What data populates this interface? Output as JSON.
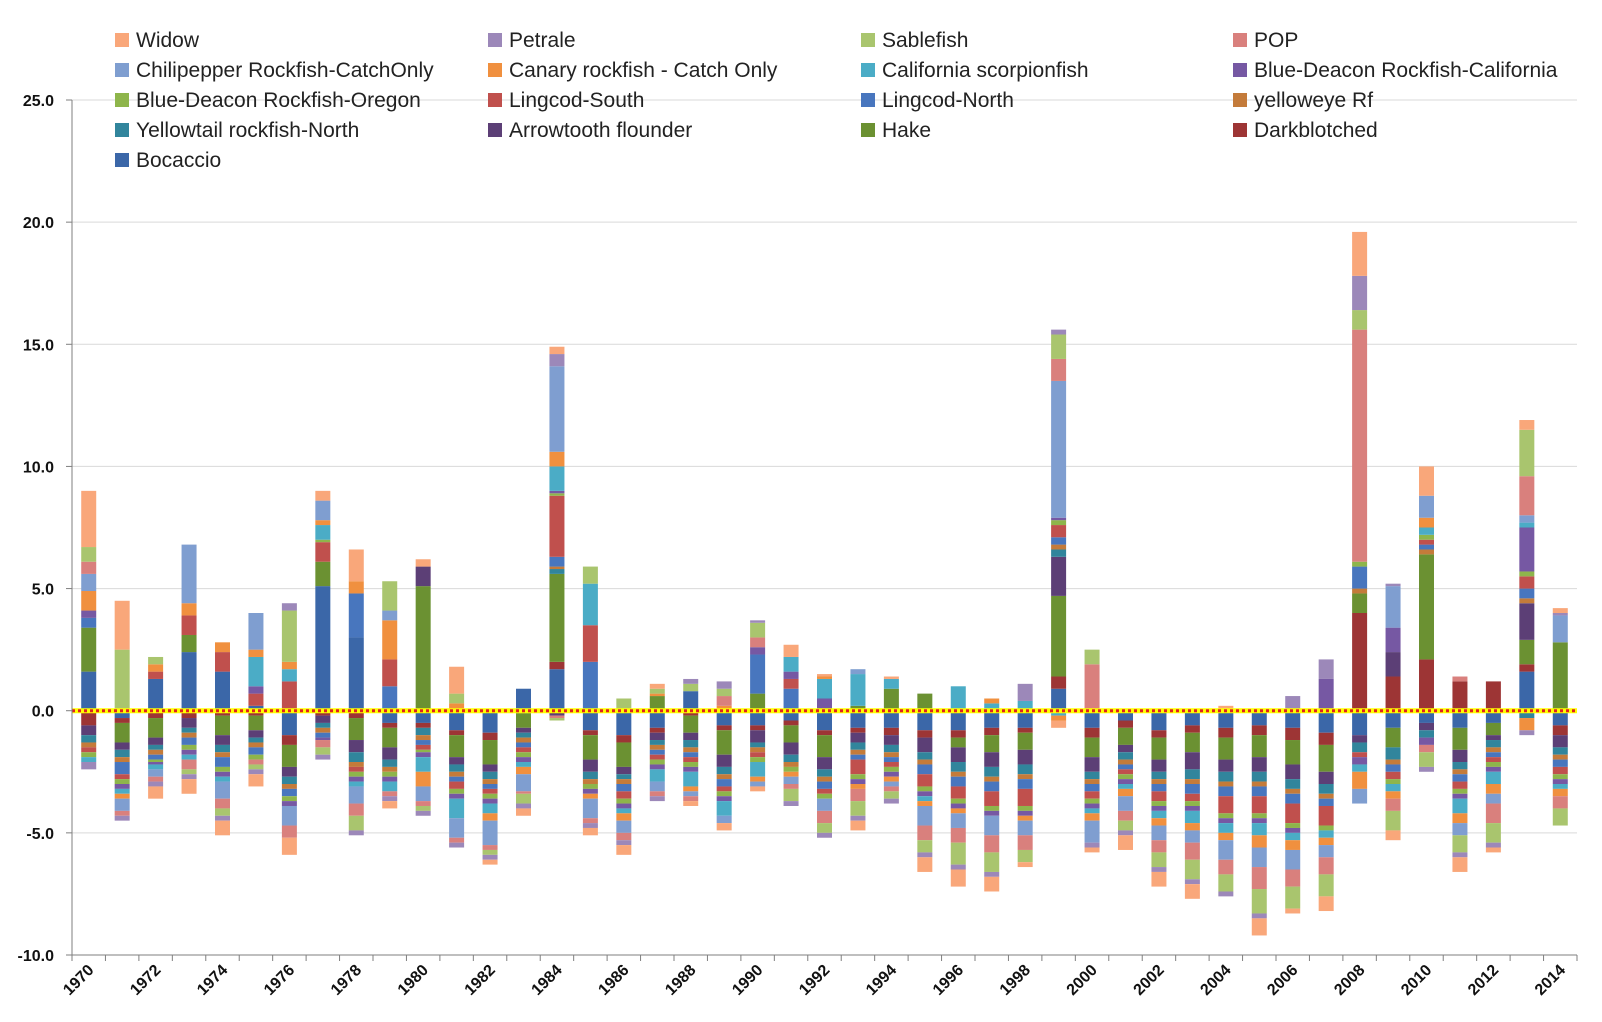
{
  "chart_data": {
    "type": "bar",
    "stacked": true,
    "title": "",
    "xlabel": "",
    "ylabel": "",
    "ylim": [
      -10,
      25
    ],
    "yticks": [
      "25.0",
      "20.0",
      "15.0",
      "10.0",
      "5.0",
      "0.0",
      "-5.0",
      "-10.0"
    ],
    "ytick_values": [
      25,
      20,
      15,
      10,
      5,
      0,
      -5,
      -10
    ],
    "grid": "horizontal",
    "legend_placement": "top",
    "zero_line_style": "red dotted line over yellow band",
    "categories": [
      "1970",
      "1971",
      "1972",
      "1973",
      "1974",
      "1975",
      "1976",
      "1977",
      "1978",
      "1979",
      "1980",
      "1981",
      "1982",
      "1983",
      "1984",
      "1985",
      "1986",
      "1987",
      "1988",
      "1989",
      "1990",
      "1991",
      "1992",
      "1993",
      "1994",
      "1995",
      "1996",
      "1997",
      "1998",
      "1999",
      "2000",
      "2001",
      "2002",
      "2003",
      "2004",
      "2005",
      "2006",
      "2007",
      "2008",
      "2009",
      "2010",
      "2011",
      "2012",
      "2013",
      "2014"
    ],
    "category_labels": [
      "1970",
      "",
      "1972",
      "",
      "1974",
      "",
      "1976",
      "",
      "1978",
      "",
      "1980",
      "",
      "1982",
      "",
      "1984",
      "",
      "1986",
      "",
      "1988",
      "",
      "1990",
      "",
      "1992",
      "",
      "1994",
      "",
      "1996",
      "",
      "1998",
      "",
      "2000",
      "",
      "2002",
      "",
      "2004",
      "",
      "2006",
      "",
      "2008",
      "",
      "2010",
      "",
      "2012",
      "",
      "2014"
    ],
    "series": [
      {
        "name": "Bocaccio",
        "color": "#3b67a8",
        "values": [
          1.6,
          -0.3,
          1.3,
          2.4,
          1.6,
          0.2,
          -1.0,
          5.1,
          3.0,
          -0.5,
          -0.5,
          -0.8,
          -0.9,
          0.9,
          1.7,
          -0.8,
          -1.0,
          -0.7,
          0.8,
          -0.6,
          -0.6,
          -0.4,
          -0.8,
          -0.7,
          -0.7,
          -0.8,
          -0.8,
          -0.7,
          -0.7,
          0.9,
          -0.7,
          -0.4,
          -0.8,
          -0.6,
          -0.7,
          -0.6,
          -0.7,
          -0.9,
          -1.0,
          -0.7,
          -0.5,
          -0.7,
          -0.5,
          1.6,
          -0.6
        ]
      },
      {
        "name": "Darkblotched",
        "color": "#9d3535",
        "values": [
          -0.6,
          -0.2,
          -0.3,
          -0.3,
          -0.2,
          -0.2,
          -0.4,
          -0.2,
          -0.3,
          -0.2,
          -0.2,
          -0.2,
          -0.3,
          -0.1,
          0.3,
          -0.2,
          -0.3,
          -0.2,
          -0.2,
          -0.2,
          -0.2,
          -0.2,
          -0.2,
          -0.2,
          -0.3,
          -0.3,
          -0.3,
          -0.3,
          -0.2,
          0.5,
          -0.4,
          -0.3,
          -0.3,
          -0.3,
          -0.4,
          -0.4,
          -0.5,
          -0.5,
          4.0,
          1.4,
          2.1,
          1.2,
          1.2,
          0.3,
          -0.4
        ]
      },
      {
        "name": "Hake",
        "color": "#6b9132",
        "values": [
          1.8,
          -0.8,
          -0.8,
          0.7,
          -0.8,
          -0.6,
          -0.9,
          1.0,
          -0.9,
          -0.8,
          5.1,
          -0.9,
          -1.0,
          -0.6,
          3.6,
          -1.0,
          -1.0,
          0.6,
          -0.7,
          -1.0,
          0.7,
          -0.7,
          -0.9,
          0.2,
          0.9,
          0.7,
          -0.4,
          -0.7,
          -0.7,
          3.3,
          -0.8,
          -0.7,
          -0.9,
          -0.8,
          -0.9,
          -0.9,
          -1.0,
          -1.1,
          0.8,
          -0.8,
          4.3,
          -0.9,
          -0.5,
          1.0,
          2.8
        ]
      },
      {
        "name": "Arrowtooth flounder",
        "color": "#5c3f76",
        "values": [
          -0.4,
          -0.3,
          -0.3,
          -0.4,
          -0.4,
          -0.3,
          -0.4,
          -0.3,
          -0.5,
          -0.5,
          0.8,
          -0.3,
          -0.3,
          -0.2,
          -0.2,
          -0.5,
          -0.3,
          -0.3,
          -0.3,
          -0.5,
          -0.5,
          -0.5,
          -0.5,
          -0.4,
          -0.4,
          -0.6,
          -0.6,
          -0.6,
          -0.6,
          1.6,
          -0.6,
          -0.3,
          -0.5,
          -0.7,
          -0.5,
          -0.6,
          -0.6,
          -0.5,
          -0.3,
          1.0,
          -0.3,
          -0.5,
          -0.2,
          1.5,
          -0.5
        ]
      },
      {
        "name": "Yellowtail rockfish-North",
        "color": "#31859c",
        "values": [
          -0.3,
          -0.3,
          -0.2,
          -0.2,
          -0.3,
          -0.2,
          -0.3,
          -0.2,
          -0.4,
          -0.3,
          -0.3,
          -0.3,
          -0.3,
          -0.2,
          0.2,
          -0.3,
          -0.2,
          -0.2,
          -0.3,
          -0.3,
          -0.2,
          -0.3,
          -0.3,
          -0.3,
          -0.3,
          -0.3,
          -0.4,
          -0.4,
          -0.4,
          0.3,
          -0.3,
          -0.3,
          -0.3,
          -0.4,
          -0.4,
          -0.4,
          -0.4,
          -0.4,
          -0.4,
          -0.5,
          -0.3,
          -0.3,
          -0.3,
          -0.3,
          -0.3
        ]
      },
      {
        "name": "yelloweye Rf",
        "color": "#c47b3a",
        "values": [
          -0.2,
          -0.2,
          -0.2,
          -0.2,
          -0.2,
          -0.2,
          -0.2,
          -0.2,
          -0.2,
          -0.2,
          -0.2,
          -0.2,
          -0.2,
          -0.2,
          0.1,
          -0.2,
          -0.2,
          -0.2,
          -0.2,
          -0.2,
          -0.2,
          -0.2,
          -0.2,
          -0.2,
          -0.2,
          -0.2,
          -0.2,
          -0.2,
          -0.2,
          0.2,
          -0.2,
          -0.2,
          -0.2,
          -0.2,
          -0.2,
          -0.2,
          -0.2,
          -0.2,
          0.2,
          -0.2,
          0.2,
          -0.2,
          -0.2,
          0.2,
          -0.2
        ]
      },
      {
        "name": "Lingcod-North",
        "color": "#4876be",
        "values": [
          0.4,
          -0.5,
          -0.2,
          -0.3,
          -0.4,
          -0.3,
          -0.3,
          -0.2,
          1.8,
          1.0,
          -0.2,
          -0.2,
          -0.2,
          -0.2,
          0.4,
          2.0,
          -0.3,
          -0.2,
          -0.2,
          -0.3,
          1.6,
          0.9,
          -0.3,
          -0.2,
          -0.2,
          -0.4,
          -0.4,
          -0.4,
          -0.4,
          0.3,
          -0.3,
          -0.2,
          -0.3,
          -0.4,
          -0.4,
          -0.4,
          -0.4,
          -0.3,
          0.9,
          -0.3,
          0.2,
          -0.3,
          -0.2,
          0.4,
          -0.3
        ]
      },
      {
        "name": "Lingcod-South",
        "color": "#c0504d",
        "values": [
          -0.2,
          -0.2,
          0.3,
          0.8,
          0.8,
          0.5,
          1.2,
          0.8,
          -0.2,
          1.1,
          -0.2,
          -0.3,
          -0.2,
          -0.2,
          2.5,
          1.5,
          -0.3,
          -0.2,
          -0.2,
          -0.2,
          -0.2,
          0.4,
          -0.2,
          -0.6,
          -0.2,
          -0.5,
          -0.5,
          -0.6,
          -0.7,
          0.5,
          -0.3,
          -0.2,
          -0.4,
          -0.3,
          -0.7,
          -0.7,
          -0.8,
          -0.8,
          -0.2,
          -0.3,
          0.2,
          -0.3,
          -0.2,
          0.5,
          -0.3
        ]
      },
      {
        "name": "Blue-Deacon Rockfish-Oregon",
        "color": "#8eb54b",
        "values": [
          -0.2,
          -0.2,
          -0.1,
          -0.2,
          -0.2,
          -0.2,
          -0.2,
          0.1,
          -0.2,
          -0.2,
          -0.1,
          -0.2,
          -0.2,
          -0.2,
          0.1,
          -0.2,
          -0.2,
          -0.2,
          -0.2,
          -0.2,
          -0.2,
          -0.2,
          -0.2,
          -0.2,
          -0.2,
          -0.2,
          -0.2,
          -0.2,
          -0.2,
          0.2,
          -0.2,
          -0.2,
          -0.2,
          -0.2,
          -0.2,
          -0.2,
          -0.2,
          -0.2,
          0.2,
          -0.2,
          0.2,
          -0.2,
          -0.2,
          0.2,
          -0.2
        ]
      },
      {
        "name": "Blue-Deacon Rockfish-California",
        "color": "#7658a3",
        "values": [
          0.3,
          -0.2,
          -0.1,
          -0.2,
          -0.2,
          0.3,
          -0.2,
          -0.1,
          -0.2,
          -0.2,
          -0.2,
          -0.2,
          -0.2,
          -0.2,
          0.1,
          -0.2,
          -0.2,
          -0.2,
          -0.2,
          -0.2,
          0.3,
          0.3,
          0.5,
          -0.2,
          -0.2,
          -0.2,
          -0.2,
          -0.2,
          -0.2,
          0.1,
          -0.2,
          -0.2,
          -0.2,
          -0.2,
          -0.2,
          -0.2,
          -0.2,
          1.3,
          -0.3,
          1.0,
          -0.3,
          -0.2,
          -0.2,
          1.8,
          -0.2
        ]
      },
      {
        "name": "California scorpionfish",
        "color": "#4bacc6",
        "values": [
          -0.2,
          -0.2,
          -0.2,
          -0.2,
          -0.2,
          1.2,
          0.5,
          0.6,
          -0.2,
          -0.4,
          -0.6,
          -0.8,
          -0.4,
          -0.2,
          1.0,
          1.7,
          -0.2,
          -0.5,
          -0.6,
          -0.6,
          -0.6,
          0.6,
          0.8,
          1.3,
          0.4,
          -0.2,
          1.0,
          0.3,
          0.4,
          -0.2,
          -0.2,
          -0.2,
          -0.3,
          -0.5,
          -0.4,
          -0.5,
          -0.3,
          -0.3,
          -0.3,
          -0.3,
          0.3,
          -0.6,
          -0.5,
          0.2,
          -0.2
        ]
      },
      {
        "name": "Canary rockfish - Catch Only",
        "color": "#f0903f",
        "values": [
          0.8,
          -0.2,
          0.3,
          0.5,
          0.4,
          0.3,
          0.3,
          0.2,
          0.5,
          1.6,
          -0.6,
          0.3,
          -0.3,
          -0.3,
          0.6,
          -0.2,
          -0.3,
          0.1,
          -0.2,
          0.2,
          -0.2,
          -0.2,
          0.1,
          -0.2,
          -0.2,
          -0.2,
          -0.2,
          0.2,
          -0.2,
          -0.2,
          -0.3,
          -0.3,
          -0.3,
          -0.3,
          -0.3,
          -0.5,
          -0.4,
          -0.3,
          -0.7,
          -0.3,
          0.4,
          -0.4,
          -0.4,
          -0.5,
          -0.3
        ]
      },
      {
        "name": "Chilipepper Rockfish-CatchOnly",
        "color": "#7f9ed0",
        "values": [
          0.7,
          -0.5,
          -0.3,
          2.4,
          -0.7,
          1.5,
          -0.8,
          0.8,
          -0.7,
          0.4,
          -0.6,
          -0.8,
          -1.0,
          -0.7,
          3.5,
          -0.8,
          -0.5,
          -0.4,
          -0.2,
          -0.3,
          -0.2,
          -0.3,
          -0.5,
          0.2,
          -0.2,
          -0.8,
          -0.6,
          -0.8,
          -0.6,
          5.6,
          -0.9,
          -0.6,
          -0.6,
          -0.5,
          -0.8,
          -0.8,
          -0.8,
          -0.5,
          -0.6,
          1.7,
          0.9,
          -0.5,
          -0.4,
          0.3,
          1.1
        ]
      },
      {
        "name": "POP",
        "color": "#d9807d",
        "values": [
          0.5,
          -0.2,
          -0.2,
          -0.4,
          -0.4,
          -0.2,
          -0.5,
          -0.3,
          -0.5,
          -0.2,
          -0.2,
          -0.2,
          -0.2,
          -0.1,
          -0.1,
          -0.2,
          -0.3,
          -0.2,
          -0.2,
          0.4,
          0.4,
          -0.2,
          -0.5,
          -0.5,
          -0.2,
          -0.6,
          -0.6,
          -0.7,
          -0.6,
          0.9,
          1.9,
          -0.4,
          -0.5,
          -0.7,
          -0.6,
          -0.9,
          -0.7,
          -0.7,
          9.5,
          -0.5,
          -0.3,
          0.2,
          -0.8,
          1.6,
          -0.5
        ]
      },
      {
        "name": "Sablefish",
        "color": "#a9c56e",
        "values": [
          0.6,
          2.5,
          0.3,
          -0.2,
          -0.3,
          -0.2,
          2.1,
          -0.3,
          -0.6,
          1.2,
          -0.2,
          0.4,
          -0.2,
          -0.4,
          -0.1,
          0.7,
          0.5,
          0.2,
          0.3,
          0.3,
          0.6,
          -0.5,
          -0.4,
          -0.6,
          -0.3,
          -0.5,
          -0.9,
          -0.8,
          -0.5,
          1.0,
          0.6,
          -0.4,
          -0.6,
          -0.8,
          -0.7,
          -1.0,
          -0.9,
          -0.9,
          0.8,
          -0.8,
          -0.6,
          -0.7,
          -0.8,
          1.9,
          -0.7
        ]
      },
      {
        "name": "Petrale",
        "color": "#9c88b9",
        "values": [
          -0.3,
          -0.2,
          -0.2,
          -0.2,
          -0.2,
          -0.2,
          0.3,
          -0.2,
          -0.2,
          -0.2,
          -0.2,
          -0.2,
          -0.2,
          -0.2,
          0.5,
          -0.2,
          -0.2,
          -0.2,
          0.2,
          0.3,
          0.1,
          -0.2,
          -0.2,
          -0.2,
          -0.2,
          -0.2,
          -0.2,
          -0.2,
          0.7,
          0.2,
          -0.2,
          -0.2,
          -0.2,
          -0.2,
          -0.2,
          -0.2,
          0.6,
          0.8,
          1.4,
          0.1,
          -0.2,
          -0.2,
          -0.2,
          -0.2,
          0.1
        ]
      },
      {
        "name": "Widow",
        "color": "#f9a77a",
        "values": [
          2.3,
          2.0,
          -0.5,
          -0.6,
          -0.6,
          -0.5,
          -0.7,
          0.4,
          1.3,
          -0.3,
          0.3,
          1.1,
          -0.2,
          -0.3,
          0.3,
          -0.3,
          -0.4,
          0.2,
          -0.2,
          -0.3,
          -0.2,
          0.5,
          0.1,
          -0.4,
          0.1,
          -0.6,
          -0.7,
          -0.6,
          -0.2,
          -0.3,
          -0.2,
          -0.6,
          -0.6,
          -0.6,
          0.2,
          -0.7,
          -0.2,
          -0.6,
          1.8,
          -0.4,
          1.2,
          -0.6,
          -0.2,
          0.4,
          0.2
        ]
      }
    ],
    "legend_order": [
      "Widow",
      "Petrale",
      "Sablefish",
      "POP",
      "Chilipepper Rockfish-CatchOnly",
      "Canary rockfish - Catch Only",
      "California scorpionfish",
      "Blue-Deacon Rockfish-California",
      "Blue-Deacon Rockfish-Oregon",
      "Lingcod-South",
      "Lingcod-North",
      "yelloweye Rf",
      "Yellowtail rockfish-North",
      "Arrowtooth flounder",
      "Hake",
      "Darkblotched",
      "Bocaccio"
    ]
  }
}
